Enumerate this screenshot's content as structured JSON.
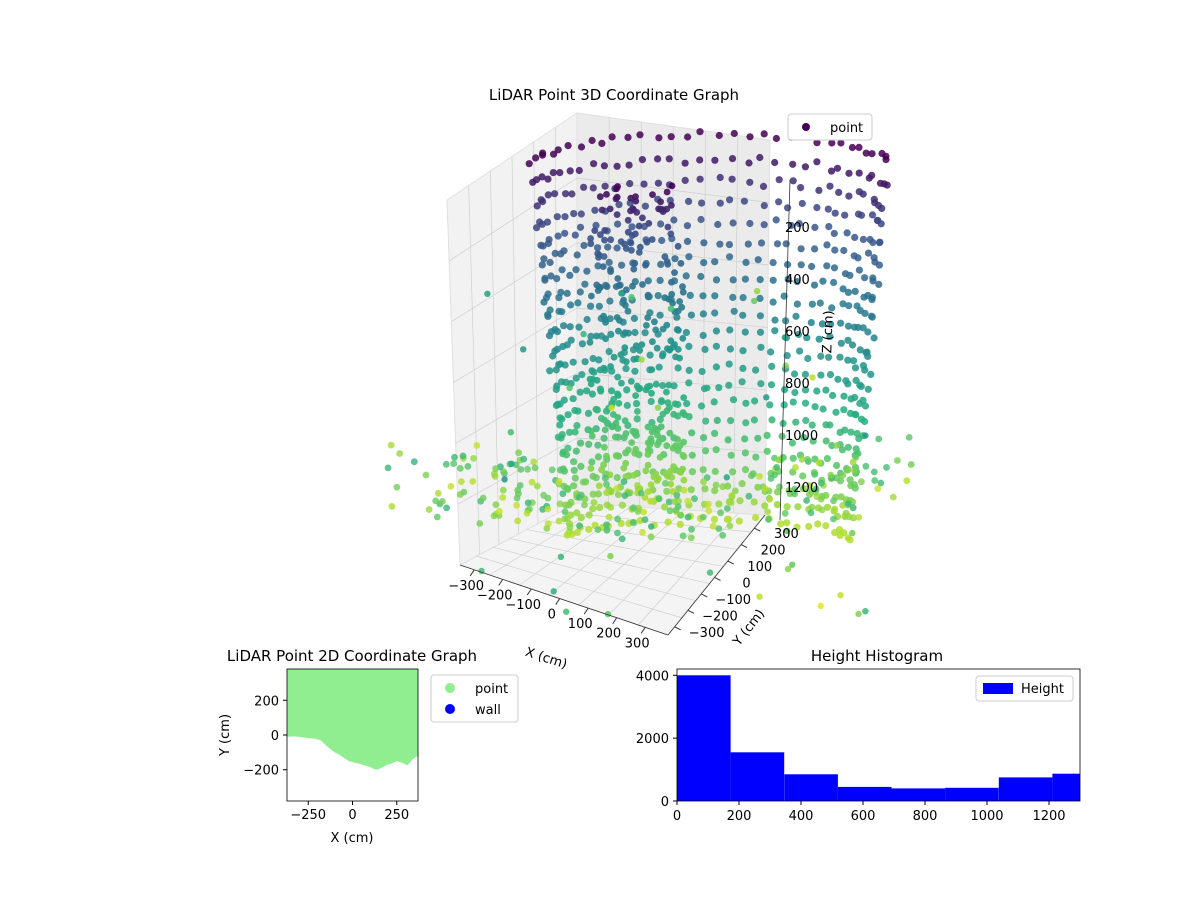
{
  "chart_data": [
    {
      "type": "scatter3d",
      "title": "LiDAR Point 3D Coordinate Graph",
      "xlabel": "X (cm)",
      "ylabel": "Y (cm)",
      "zlabel": "Z (cm)",
      "x_ticks": [
        "−300",
        "−200",
        "−100",
        "0",
        "100",
        "200",
        "300"
      ],
      "y_ticks": [
        "−300",
        "−200",
        "−100",
        "0",
        "100",
        "200",
        "300"
      ],
      "z_ticks": [
        "1200",
        "1000",
        "800",
        "600",
        "400",
        "200"
      ],
      "xlim": [
        -350,
        350
      ],
      "ylim": [
        -350,
        350
      ],
      "zlim": [
        1300,
        0
      ],
      "z_inverted": true,
      "colormap": "viridis",
      "legend": {
        "entries": [
          {
            "name": "point",
            "color": "#440154"
          }
        ],
        "position": "top-right"
      },
      "grid": true
    },
    {
      "type": "scatter",
      "title": "LiDAR Point 2D Coordinate Graph",
      "xlabel": "X (cm)",
      "ylabel": "Y (cm)",
      "x_ticks": [
        "−250",
        "0",
        "250"
      ],
      "y_ticks": [
        "200",
        "0",
        "−200"
      ],
      "xlim": [
        -370,
        370
      ],
      "ylim": [
        -380,
        380
      ],
      "series": [
        {
          "name": "point",
          "color": "#90ee90",
          "boundary_x": [
            -370,
            -330,
            -290,
            -250,
            -210,
            -180,
            -150,
            -120,
            -100,
            -80,
            -50,
            -20,
            10,
            40,
            70,
            100,
            120,
            140,
            160,
            180,
            200,
            220,
            250,
            280,
            310,
            340,
            370
          ],
          "boundary_y": [
            -10,
            -8,
            -12,
            -18,
            -22,
            -30,
            -60,
            -85,
            -100,
            -110,
            -130,
            -150,
            -160,
            -165,
            -175,
            -185,
            -195,
            -200,
            -190,
            -180,
            -170,
            -165,
            -150,
            -160,
            -175,
            -140,
            -120
          ]
        },
        {
          "name": "wall",
          "color": "#0000ff"
        }
      ],
      "legend": {
        "position": "outside-right"
      }
    },
    {
      "type": "bar",
      "title": "Height Histogram",
      "x_ticks": [
        "0",
        "200",
        "400",
        "600",
        "800",
        "1000",
        "1200"
      ],
      "y_ticks": [
        "0",
        "2000",
        "4000"
      ],
      "xlim": [
        0,
        1300
      ],
      "ylim": [
        0,
        4200
      ],
      "bin_edges": [
        0,
        173,
        346,
        519,
        692,
        865,
        1038,
        1211,
        1384
      ],
      "values": [
        4000,
        1550,
        850,
        450,
        400,
        420,
        750,
        870
      ],
      "series": [
        {
          "name": "Height",
          "color": "#0000ff"
        }
      ],
      "legend": {
        "position": "top-right"
      }
    }
  ]
}
